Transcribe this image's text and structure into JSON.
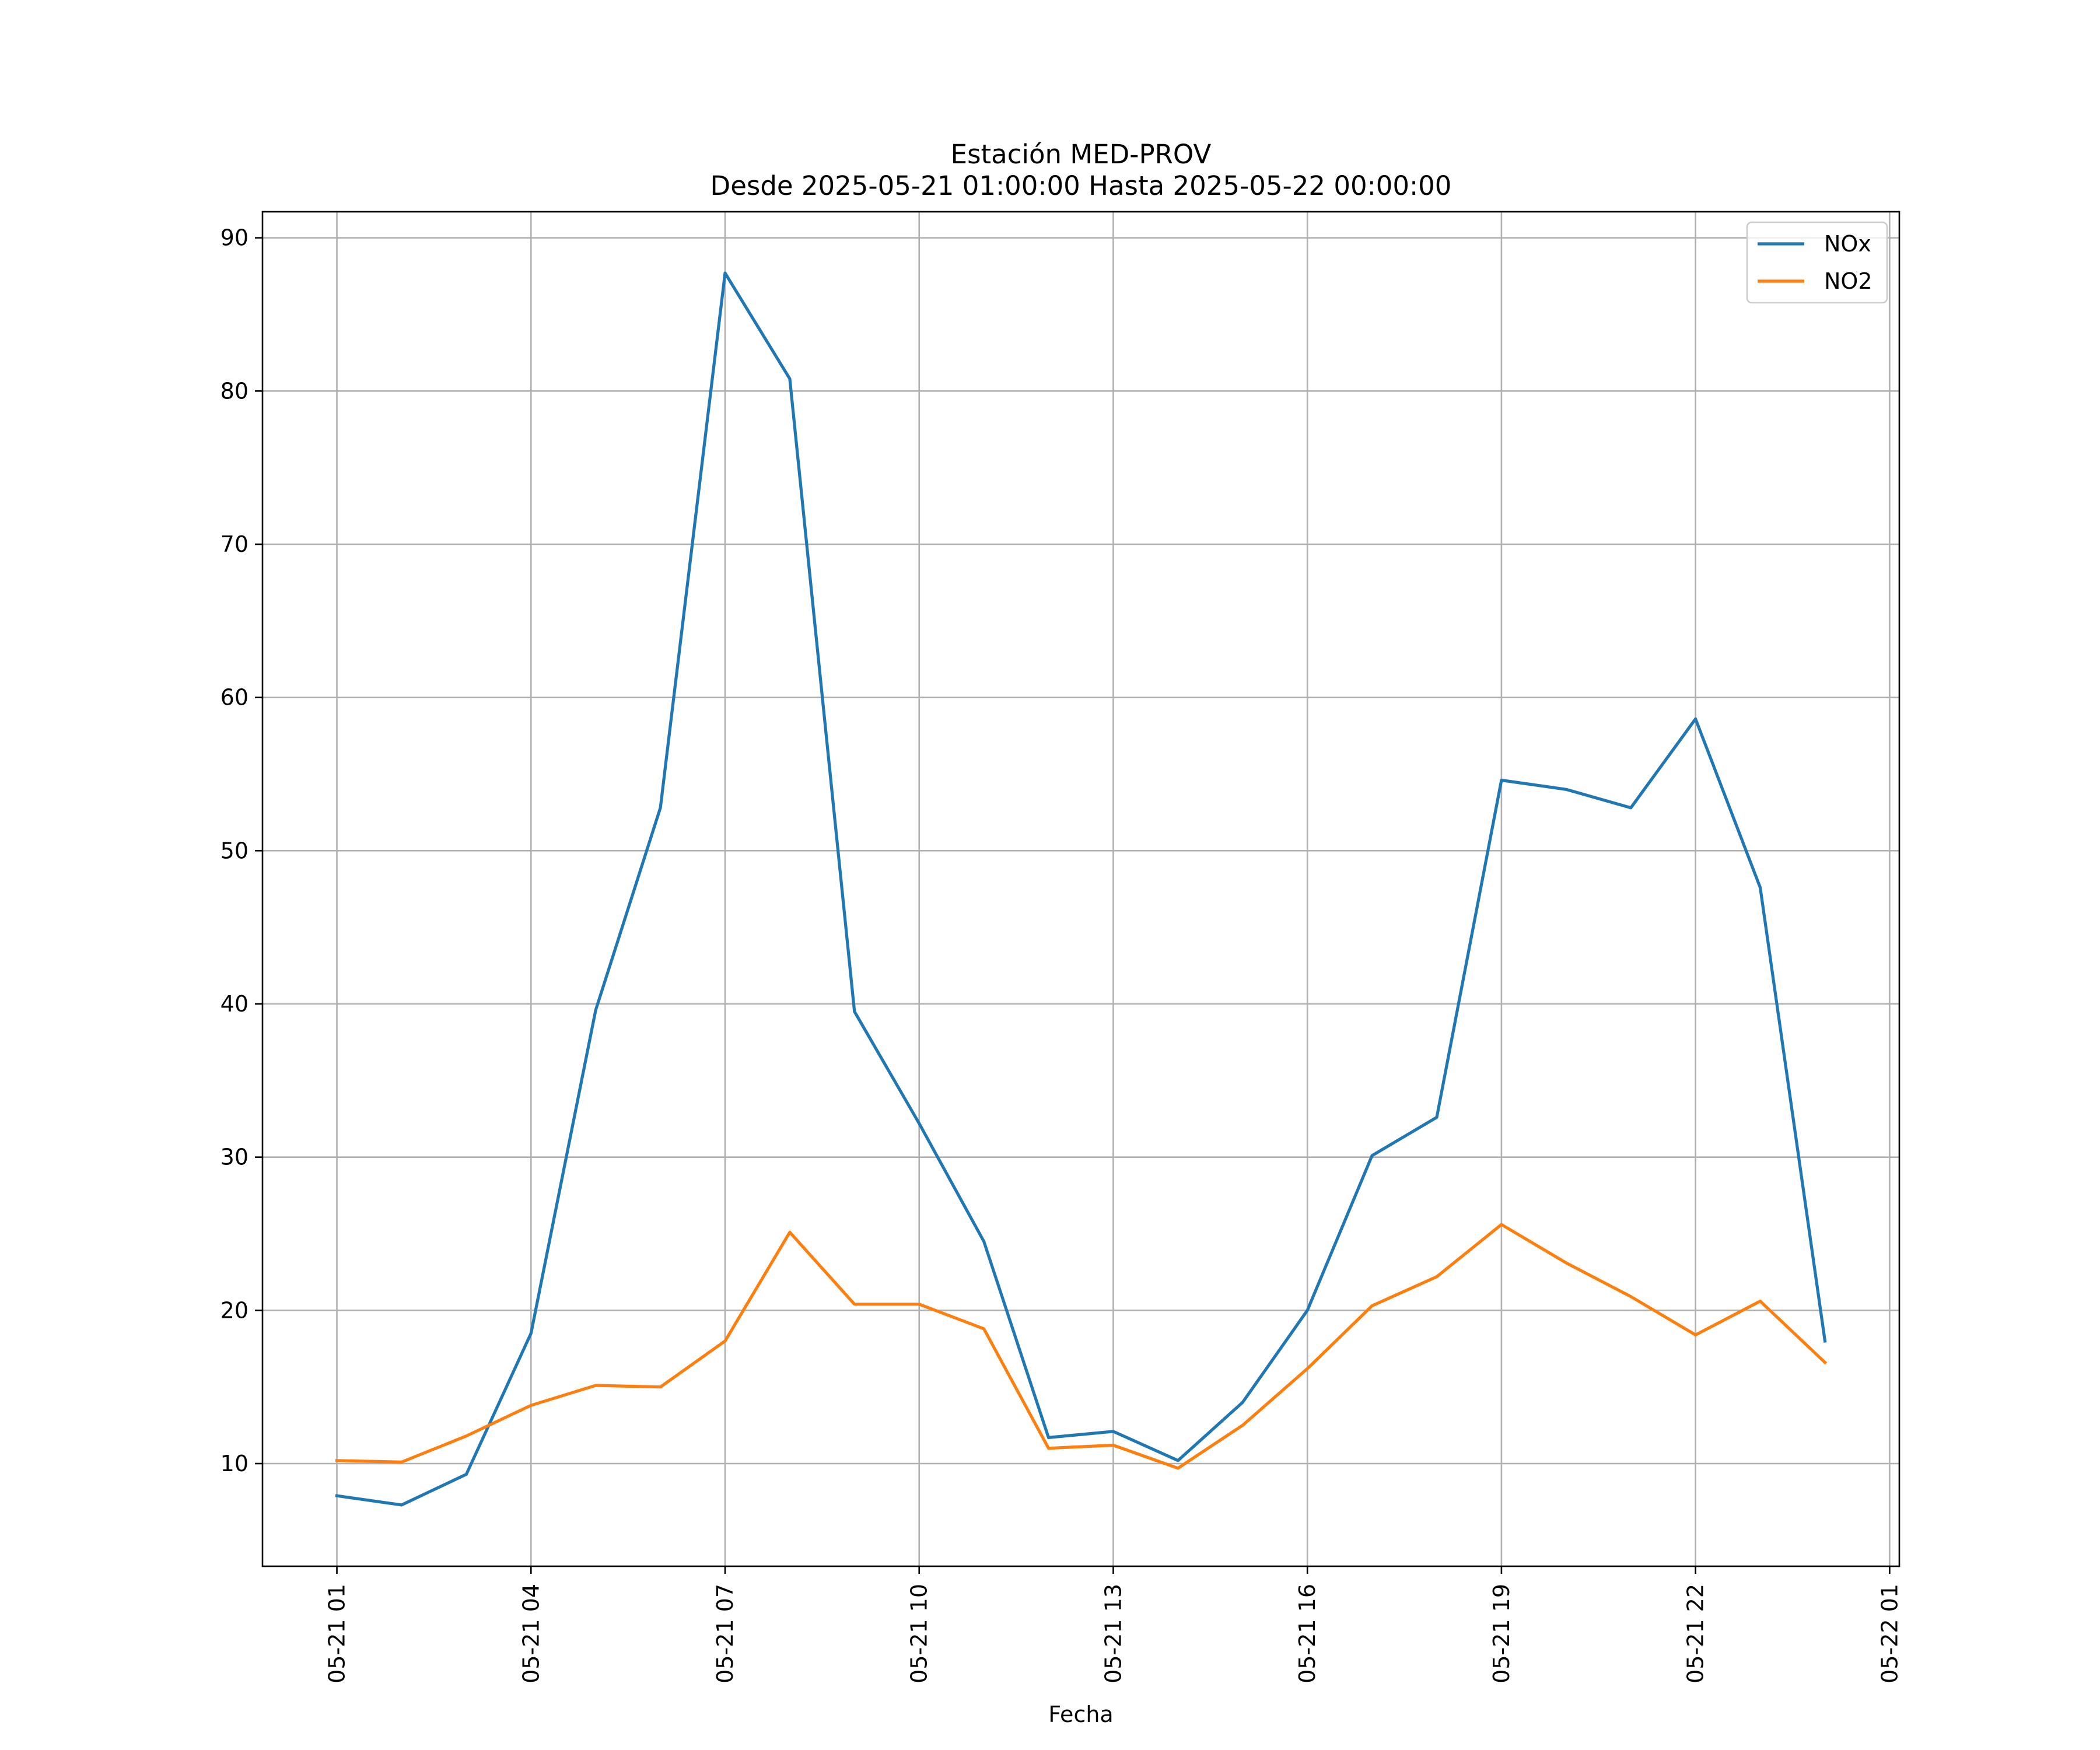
{
  "chart_data": {
    "type": "line",
    "title": "Estación MED-PROV",
    "subtitle": "Desde 2025-05-21 01:00:00 Hasta 2025-05-22 00:00:00",
    "xlabel": "Fecha",
    "ylabel": "",
    "x": [
      "2025-05-21 01:00",
      "2025-05-21 02:00",
      "2025-05-21 03:00",
      "2025-05-21 04:00",
      "2025-05-21 05:00",
      "2025-05-21 06:00",
      "2025-05-21 07:00",
      "2025-05-21 08:00",
      "2025-05-21 09:00",
      "2025-05-21 10:00",
      "2025-05-21 11:00",
      "2025-05-21 12:00",
      "2025-05-21 13:00",
      "2025-05-21 14:00",
      "2025-05-21 15:00",
      "2025-05-21 16:00",
      "2025-05-21 17:00",
      "2025-05-21 18:00",
      "2025-05-21 19:00",
      "2025-05-21 20:00",
      "2025-05-21 21:00",
      "2025-05-21 22:00",
      "2025-05-21 23:00",
      "2025-05-22 00:00"
    ],
    "series": [
      {
        "name": "NOx",
        "color": "#1f77b4",
        "values": [
          7.9,
          7.3,
          9.3,
          18.5,
          39.6,
          52.8,
          87.7,
          80.8,
          39.5,
          32.2,
          24.5,
          11.7,
          12.1,
          10.2,
          14.0,
          20.0,
          30.1,
          32.6,
          54.6,
          54.0,
          52.8,
          58.6,
          47.6,
          18.0
        ]
      },
      {
        "name": "NO2",
        "color": "#ff7f0e",
        "values": [
          10.2,
          10.1,
          11.8,
          13.8,
          15.1,
          15.0,
          18.0,
          25.1,
          20.4,
          20.4,
          18.8,
          11.0,
          11.2,
          9.7,
          12.5,
          16.2,
          20.3,
          22.2,
          25.6,
          23.1,
          20.9,
          18.4,
          20.6,
          16.6
        ]
      }
    ],
    "yticks": [
      10,
      20,
      30,
      40,
      50,
      60,
      70,
      80,
      90
    ],
    "ylim": [
      3.3,
      91.7
    ],
    "xticks": [
      {
        "value": "2025-05-21 01:00",
        "label": "05-21 01"
      },
      {
        "value": "2025-05-21 04:00",
        "label": "05-21 04"
      },
      {
        "value": "2025-05-21 07:00",
        "label": "05-21 07"
      },
      {
        "value": "2025-05-21 10:00",
        "label": "05-21 10"
      },
      {
        "value": "2025-05-21 13:00",
        "label": "05-21 13"
      },
      {
        "value": "2025-05-21 16:00",
        "label": "05-21 16"
      },
      {
        "value": "2025-05-21 19:00",
        "label": "05-21 19"
      },
      {
        "value": "2025-05-21 22:00",
        "label": "05-21 22"
      },
      {
        "value": "2025-05-22 01:00",
        "label": "05-22 01"
      }
    ],
    "xlim": [
      "2025-05-20 23:51",
      "2025-05-22 01:09"
    ],
    "grid": true,
    "legend": "top-right"
  }
}
